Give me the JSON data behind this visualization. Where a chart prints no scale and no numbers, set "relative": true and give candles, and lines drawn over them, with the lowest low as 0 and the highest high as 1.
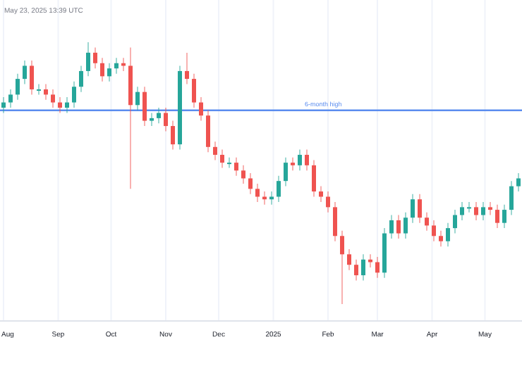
{
  "chart_data": {
    "type": "candlestick",
    "subtitle": "May 23, 2025 13:39 UTC",
    "relative": true,
    "grid": "x",
    "xlim": [
      "2024-07-30",
      "2025-05-22"
    ],
    "xticks": [
      {
        "value": "2024-08-01",
        "label": "Aug"
      },
      {
        "value": "2024-09-01",
        "label": "Sep"
      },
      {
        "value": "2024-10-01",
        "label": "Oct"
      },
      {
        "value": "2024-11-01",
        "label": "Nov"
      },
      {
        "value": "2024-12-01",
        "label": "Dec"
      },
      {
        "value": "2025-01-01",
        "label": "2025"
      },
      {
        "value": "2025-02-01",
        "label": "Feb"
      },
      {
        "value": "2025-03-01",
        "label": "Mar"
      },
      {
        "value": "2025-04-01",
        "label": "Apr"
      },
      {
        "value": "2025-05-01",
        "label": "May"
      }
    ],
    "ref_lines": [
      {
        "axis": "y",
        "value": 0.74,
        "label": "6-month high",
        "color": "#5b8def"
      }
    ],
    "x": [
      "2024-08-01",
      "2024-08-05",
      "2024-08-09",
      "2024-08-13",
      "2024-08-17",
      "2024-08-21",
      "2024-08-25",
      "2024-08-29",
      "2024-09-02",
      "2024-09-06",
      "2024-09-10",
      "2024-09-14",
      "2024-09-18",
      "2024-09-22",
      "2024-09-26",
      "2024-09-30",
      "2024-10-04",
      "2024-10-08",
      "2024-10-12",
      "2024-10-16",
      "2024-10-20",
      "2024-10-24",
      "2024-10-28",
      "2024-11-01",
      "2024-11-05",
      "2024-11-09",
      "2024-11-13",
      "2024-11-17",
      "2024-11-21",
      "2024-11-25",
      "2024-11-29",
      "2024-12-03",
      "2024-12-07",
      "2024-12-11",
      "2024-12-15",
      "2024-12-19",
      "2024-12-23",
      "2024-12-27",
      "2024-12-31",
      "2025-01-04",
      "2025-01-08",
      "2025-01-12",
      "2025-01-16",
      "2025-01-20",
      "2025-01-24",
      "2025-01-28",
      "2025-02-01",
      "2025-02-05",
      "2025-02-09",
      "2025-02-13",
      "2025-02-17",
      "2025-02-21",
      "2025-02-25",
      "2025-03-01",
      "2025-03-05",
      "2025-03-09",
      "2025-03-13",
      "2025-03-17",
      "2025-03-21",
      "2025-03-25",
      "2025-03-29",
      "2025-04-02",
      "2025-04-06",
      "2025-04-10",
      "2025-04-14",
      "2025-04-18",
      "2025-04-22",
      "2025-04-26",
      "2025-04-30",
      "2025-05-04",
      "2025-05-08",
      "2025-05-12",
      "2025-05-16",
      "2025-05-20"
    ],
    "ohlc": [
      [
        0.75,
        0.79,
        0.73,
        0.77
      ],
      [
        0.77,
        0.82,
        0.75,
        0.8
      ],
      [
        0.8,
        0.88,
        0.78,
        0.86
      ],
      [
        0.86,
        0.93,
        0.84,
        0.91
      ],
      [
        0.91,
        0.93,
        0.8,
        0.82
      ],
      [
        0.82,
        0.84,
        0.8,
        0.82
      ],
      [
        0.82,
        0.84,
        0.78,
        0.8
      ],
      [
        0.8,
        0.82,
        0.75,
        0.77
      ],
      [
        0.77,
        0.79,
        0.73,
        0.75
      ],
      [
        0.75,
        0.79,
        0.73,
        0.77
      ],
      [
        0.77,
        0.85,
        0.75,
        0.83
      ],
      [
        0.83,
        0.91,
        0.81,
        0.89
      ],
      [
        0.89,
        1.0,
        0.87,
        0.96
      ],
      [
        0.96,
        0.98,
        0.9,
        0.92
      ],
      [
        0.92,
        0.94,
        0.85,
        0.87
      ],
      [
        0.87,
        0.92,
        0.85,
        0.9
      ],
      [
        0.9,
        0.94,
        0.88,
        0.92
      ],
      [
        0.92,
        0.94,
        0.89,
        0.91
      ],
      [
        0.91,
        0.98,
        0.44,
        0.76
      ],
      [
        0.76,
        0.83,
        0.74,
        0.81
      ],
      [
        0.81,
        0.83,
        0.68,
        0.7
      ],
      [
        0.7,
        0.73,
        0.68,
        0.71
      ],
      [
        0.71,
        0.75,
        0.69,
        0.73
      ],
      [
        0.73,
        0.75,
        0.66,
        0.68
      ],
      [
        0.68,
        0.7,
        0.59,
        0.61
      ],
      [
        0.61,
        0.91,
        0.59,
        0.89
      ],
      [
        0.89,
        0.96,
        0.84,
        0.86
      ],
      [
        0.86,
        0.88,
        0.75,
        0.77
      ],
      [
        0.77,
        0.79,
        0.7,
        0.72
      ],
      [
        0.72,
        0.74,
        0.58,
        0.6
      ],
      [
        0.6,
        0.62,
        0.55,
        0.57
      ],
      [
        0.57,
        0.59,
        0.52,
        0.54
      ],
      [
        0.54,
        0.56,
        0.52,
        0.54
      ],
      [
        0.54,
        0.56,
        0.49,
        0.51
      ],
      [
        0.51,
        0.53,
        0.46,
        0.48
      ],
      [
        0.48,
        0.5,
        0.42,
        0.44
      ],
      [
        0.44,
        0.46,
        0.39,
        0.41
      ],
      [
        0.41,
        0.43,
        0.38,
        0.4
      ],
      [
        0.4,
        0.43,
        0.38,
        0.41
      ],
      [
        0.41,
        0.49,
        0.39,
        0.47
      ],
      [
        0.47,
        0.56,
        0.45,
        0.54
      ],
      [
        0.54,
        0.56,
        0.51,
        0.53
      ],
      [
        0.53,
        0.59,
        0.51,
        0.57
      ],
      [
        0.57,
        0.59,
        0.51,
        0.53
      ],
      [
        0.53,
        0.55,
        0.41,
        0.43
      ],
      [
        0.43,
        0.45,
        0.39,
        0.41
      ],
      [
        0.41,
        0.43,
        0.35,
        0.37
      ],
      [
        0.37,
        0.39,
        0.24,
        0.26
      ],
      [
        0.26,
        0.28,
        0.0,
        0.19
      ],
      [
        0.19,
        0.21,
        0.13,
        0.15
      ],
      [
        0.15,
        0.17,
        0.09,
        0.11
      ],
      [
        0.11,
        0.19,
        0.09,
        0.17
      ],
      [
        0.17,
        0.19,
        0.14,
        0.16
      ],
      [
        0.16,
        0.18,
        0.1,
        0.12
      ],
      [
        0.12,
        0.29,
        0.1,
        0.27
      ],
      [
        0.27,
        0.34,
        0.25,
        0.32
      ],
      [
        0.32,
        0.34,
        0.25,
        0.27
      ],
      [
        0.27,
        0.35,
        0.25,
        0.33
      ],
      [
        0.33,
        0.42,
        0.31,
        0.4
      ],
      [
        0.4,
        0.42,
        0.31,
        0.33
      ],
      [
        0.33,
        0.35,
        0.28,
        0.3
      ],
      [
        0.3,
        0.32,
        0.24,
        0.26
      ],
      [
        0.26,
        0.28,
        0.22,
        0.24
      ],
      [
        0.24,
        0.31,
        0.22,
        0.29
      ],
      [
        0.29,
        0.36,
        0.27,
        0.34
      ],
      [
        0.34,
        0.39,
        0.32,
        0.37
      ],
      [
        0.37,
        0.39,
        0.35,
        0.37
      ],
      [
        0.37,
        0.39,
        0.32,
        0.34
      ],
      [
        0.34,
        0.39,
        0.32,
        0.37
      ],
      [
        0.37,
        0.39,
        0.34,
        0.36
      ],
      [
        0.36,
        0.38,
        0.29,
        0.31
      ],
      [
        0.31,
        0.38,
        0.29,
        0.36
      ],
      [
        0.36,
        0.47,
        0.34,
        0.45
      ],
      [
        0.45,
        0.5,
        0.43,
        0.48
      ]
    ]
  }
}
